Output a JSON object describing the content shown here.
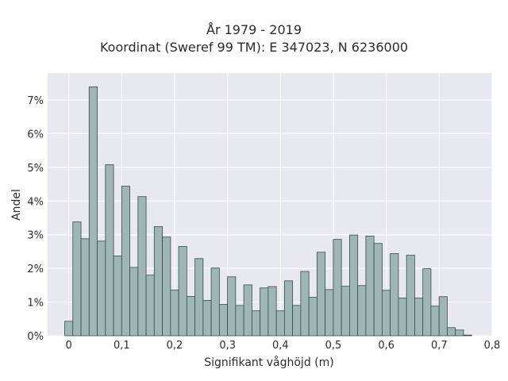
{
  "chart_data": {
    "type": "bar",
    "title": "År 1979 - 2019",
    "subtitle": "Koordinat (Sweref 99 TM): E 347023, N 6236000",
    "xlabel": "Signifikant våghöjd (m)",
    "ylabel": "Andel",
    "xlim": [
      -0.04,
      0.8
    ],
    "ylim": [
      0,
      7.8
    ],
    "x_ticks": [
      0,
      0.1,
      0.2,
      0.3,
      0.4,
      0.5,
      0.6,
      0.7,
      0.8
    ],
    "x_tick_labels": [
      "0",
      "0,1",
      "0,2",
      "0,3",
      "0,4",
      "0,5",
      "0,6",
      "0,7",
      "0,8"
    ],
    "y_ticks": [
      0,
      1,
      2,
      3,
      4,
      5,
      6,
      7
    ],
    "y_tick_labels": [
      "0%",
      "1%",
      "2%",
      "3%",
      "4%",
      "5%",
      "6%",
      "7%"
    ],
    "grid": true,
    "bin_width": 0.01538,
    "bin_start": -0.00769,
    "values": [
      0.43,
      3.38,
      2.88,
      7.39,
      2.81,
      5.08,
      2.37,
      4.44,
      2.03,
      4.13,
      1.8,
      3.24,
      2.93,
      1.36,
      2.65,
      1.17,
      2.29,
      1.05,
      2.01,
      0.93,
      1.75,
      0.9,
      1.51,
      0.74,
      1.42,
      1.46,
      0.74,
      1.63,
      0.9,
      1.91,
      1.14,
      2.48,
      1.37,
      2.86,
      1.47,
      2.99,
      1.49,
      2.96,
      2.74,
      1.35,
      2.44,
      1.12,
      2.39,
      1.12,
      1.99,
      0.88,
      1.16,
      0.24,
      0.17,
      0.02
    ],
    "colors": {
      "bar_fill": "#9db7b7",
      "bar_edge": "#3c4a4a",
      "plot_bg": "#e8e8f0",
      "grid": "#ffffff"
    }
  }
}
